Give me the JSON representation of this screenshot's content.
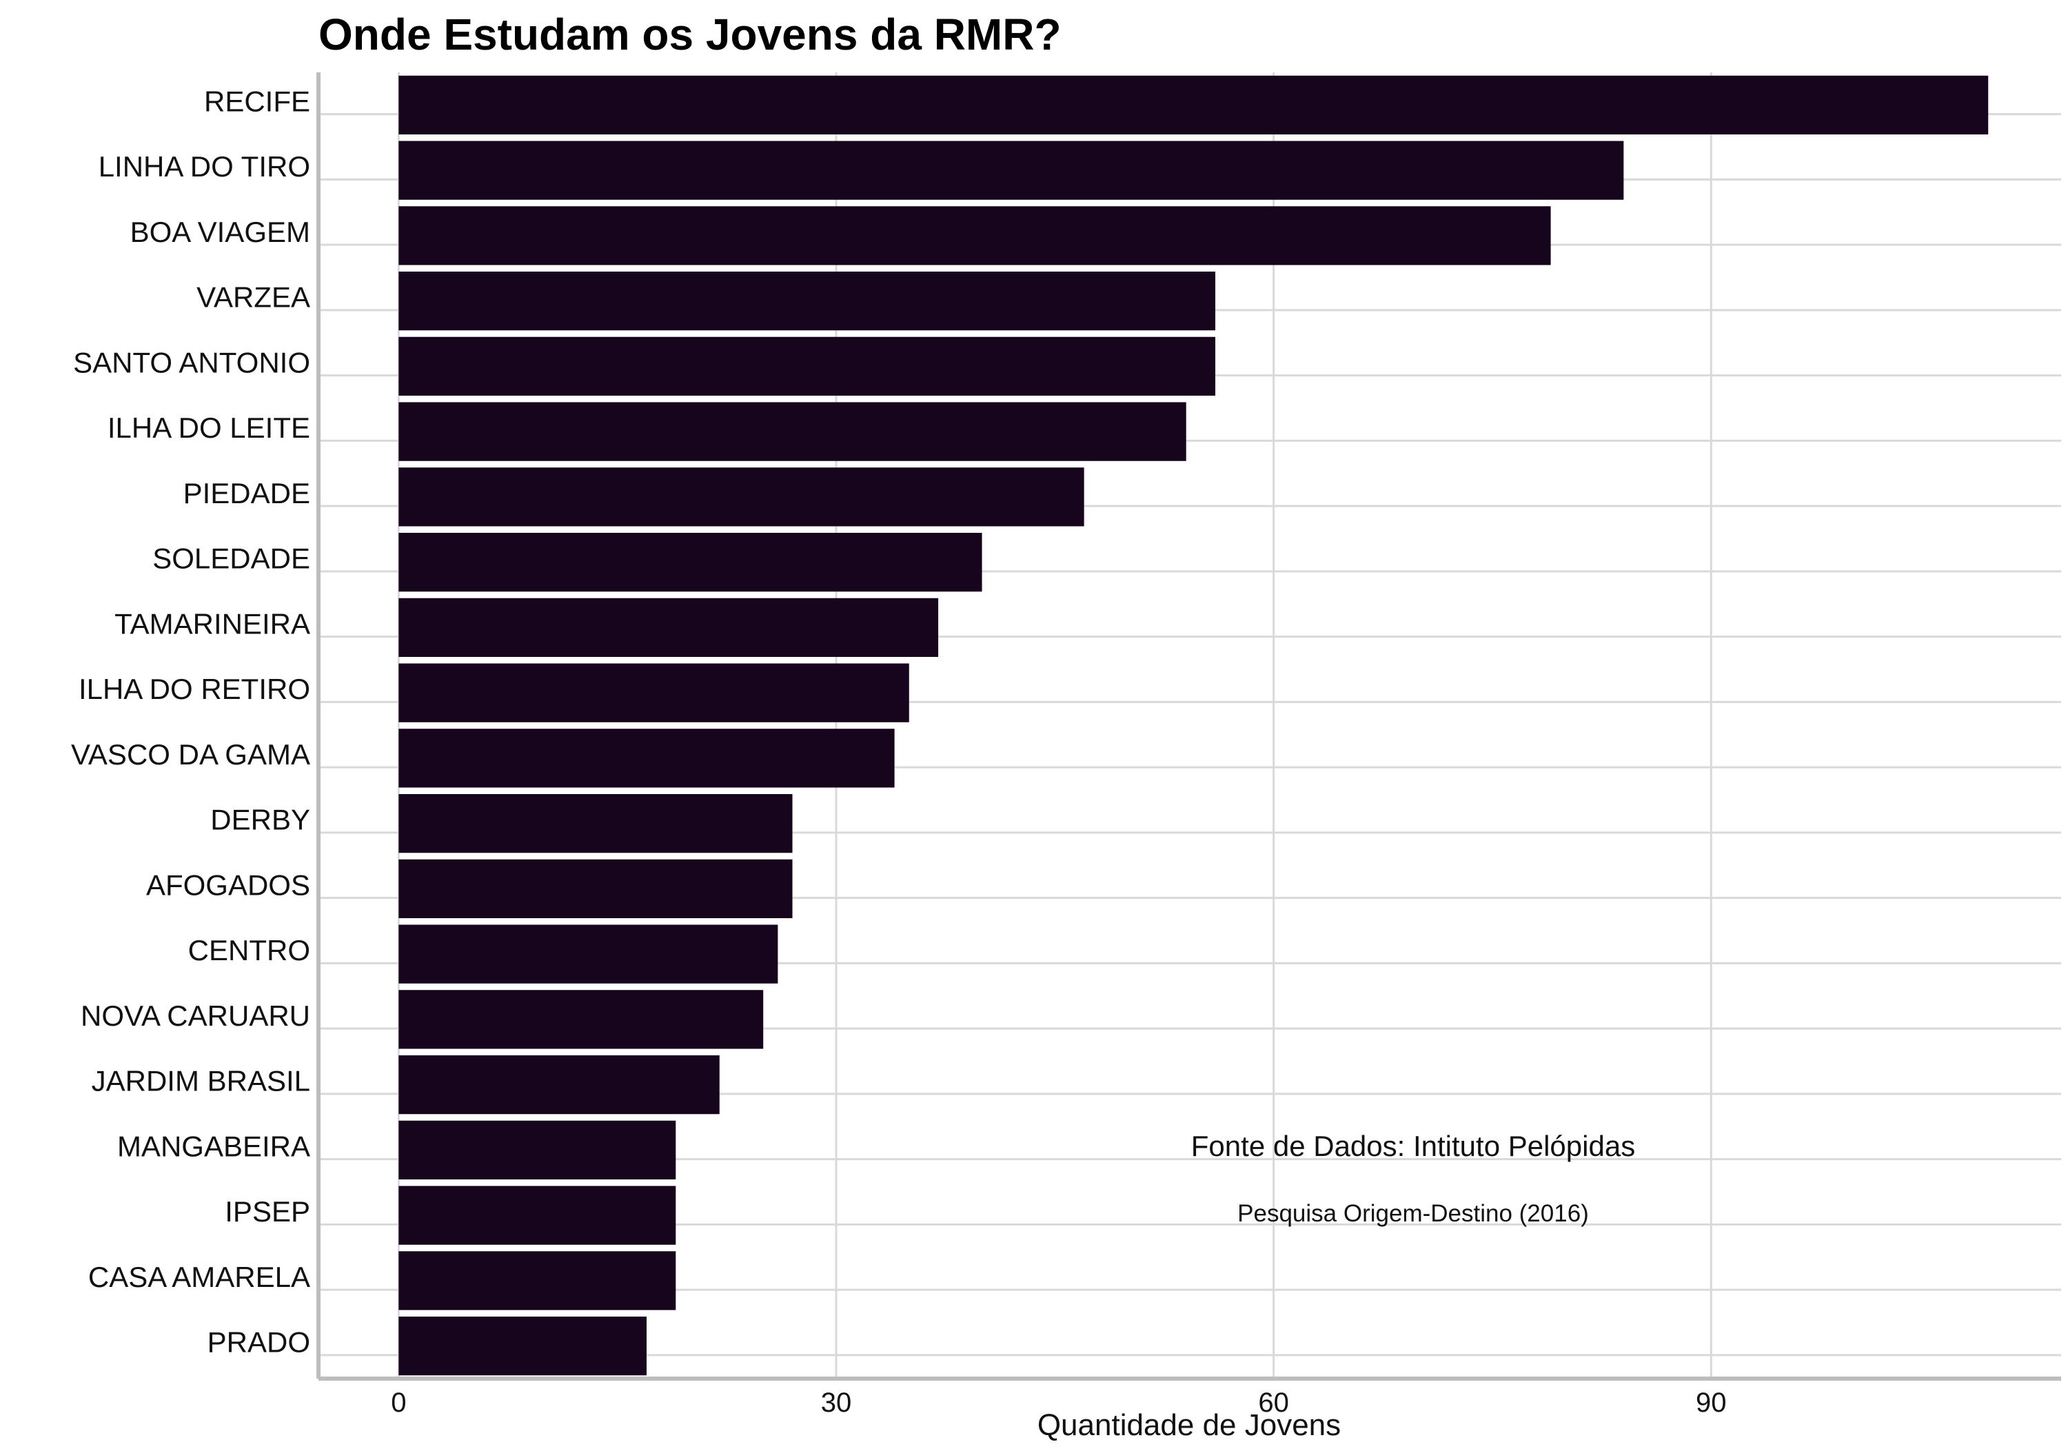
{
  "chart_data": {
    "type": "bar",
    "orientation": "horizontal",
    "title": "Onde Estudam os Jovens da RMR?",
    "xlabel": "Quantidade de Jovens",
    "ylabel": "",
    "xlim": [
      -5.5,
      114
    ],
    "xticks": [
      0,
      30,
      60,
      90
    ],
    "grid": true,
    "bar_color": "#16051d",
    "categories": [
      "RECIFE",
      "LINHA DO TIRO",
      "BOA VIAGEM",
      "VARZEA",
      "SANTO ANTONIO",
      "ILHA DO LEITE",
      "PIEDADE",
      "SOLEDADE",
      "TAMARINEIRA",
      "ILHA DO RETIRO",
      "VASCO DA GAMA",
      "DERBY",
      "AFOGADOS",
      "CENTRO",
      "NOVA CARUARU",
      "JARDIM BRASIL",
      "MANGABEIRA",
      "IPSEP",
      "CASA AMARELA",
      "PRADO"
    ],
    "values": [
      109,
      84,
      79,
      56,
      56,
      54,
      47,
      40,
      37,
      35,
      34,
      27,
      27,
      26,
      25,
      22,
      19,
      19,
      19,
      17
    ],
    "annotations": [
      "Fonte de Dados: Intituto Pelópidas",
      "Pesquisa Origem-Destino (2016)"
    ]
  }
}
